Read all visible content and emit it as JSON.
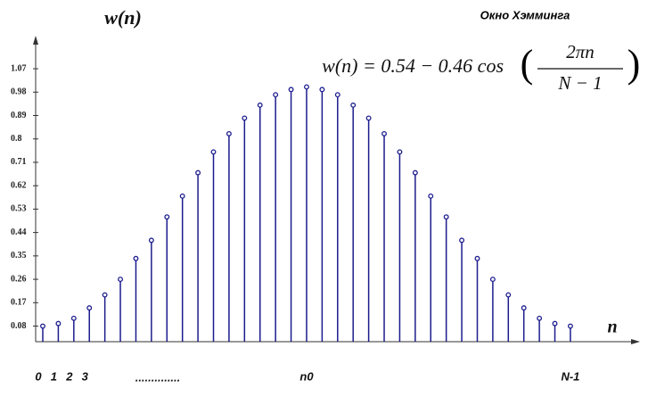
{
  "chart_data": {
    "type": "stem",
    "title": "Окно Хэмминга",
    "formula": {
      "lhs": "w(n) = 0.54 − 0.46 cos",
      "numerator": "2πn",
      "denominator": "N − 1"
    },
    "y_label": "w(n)",
    "x_label": "n",
    "x_annotation": "..............",
    "categories": [
      "0",
      "1",
      "2",
      "3",
      null,
      null,
      null,
      null,
      null,
      null,
      null,
      null,
      null,
      null,
      null,
      null,
      null,
      "n0",
      null,
      null,
      null,
      null,
      null,
      null,
      null,
      null,
      null,
      null,
      null,
      null,
      null,
      null,
      null,
      null,
      "N-1"
    ],
    "values": [
      0.08,
      0.09,
      0.11,
      0.15,
      0.2,
      0.26,
      0.34,
      0.41,
      0.5,
      0.58,
      0.67,
      0.75,
      0.82,
      0.88,
      0.93,
      0.97,
      0.99,
      1.0,
      0.99,
      0.97,
      0.93,
      0.88,
      0.82,
      0.75,
      0.67,
      0.58,
      0.5,
      0.41,
      0.34,
      0.26,
      0.2,
      0.15,
      0.11,
      0.09,
      0.08
    ],
    "color": "#1c1c8e",
    "ylim": [
      0.02,
      1.18
    ],
    "yticks": [
      0.08,
      0.17,
      0.26,
      0.35,
      0.44,
      0.53,
      0.62,
      0.71,
      0.8,
      0.89,
      0.98,
      1.07
    ]
  }
}
